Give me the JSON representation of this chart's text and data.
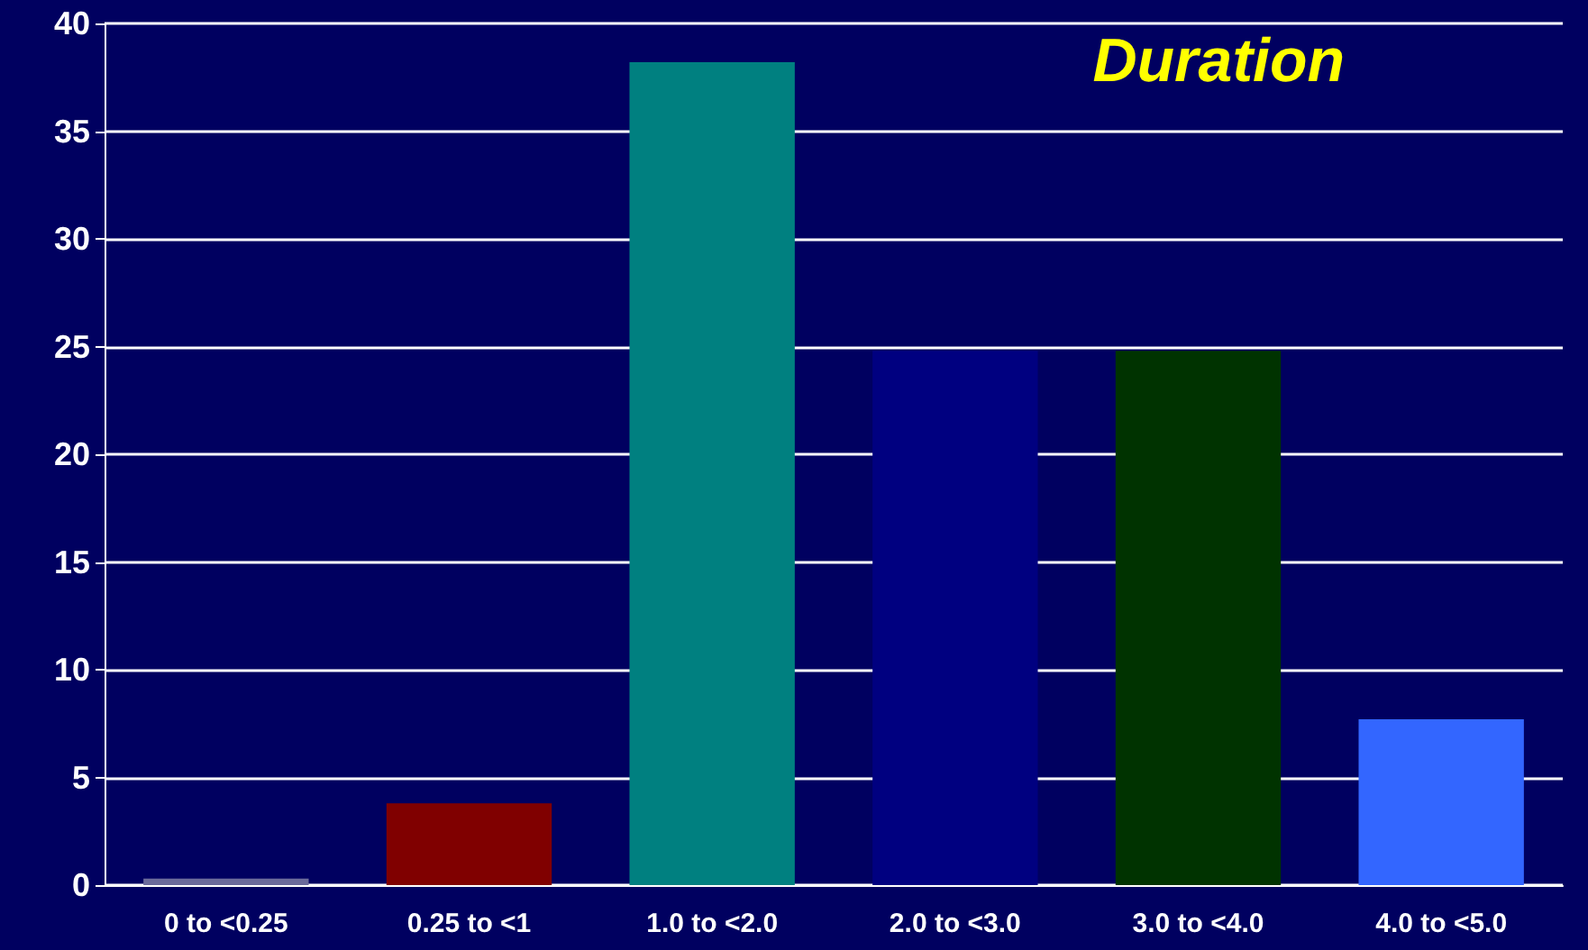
{
  "chart_data": {
    "type": "bar",
    "title": "Duration",
    "categories": [
      "0 to <0.25",
      "0.25 to <1",
      "1.0 to <2.0",
      "2.0 to <3.0",
      "3.0 to <4.0",
      "4.0 to <5.0"
    ],
    "values": [
      0.3,
      3.8,
      38.2,
      24.8,
      24.8,
      7.7
    ],
    "colors": [
      "#6a6a9a",
      "#800000",
      "#008080",
      "#000080",
      "#003300",
      "#3366ff"
    ],
    "ylim": [
      0,
      40
    ],
    "yticks": [
      0,
      5,
      10,
      15,
      20,
      25,
      30,
      35,
      40
    ],
    "grid": "y"
  }
}
